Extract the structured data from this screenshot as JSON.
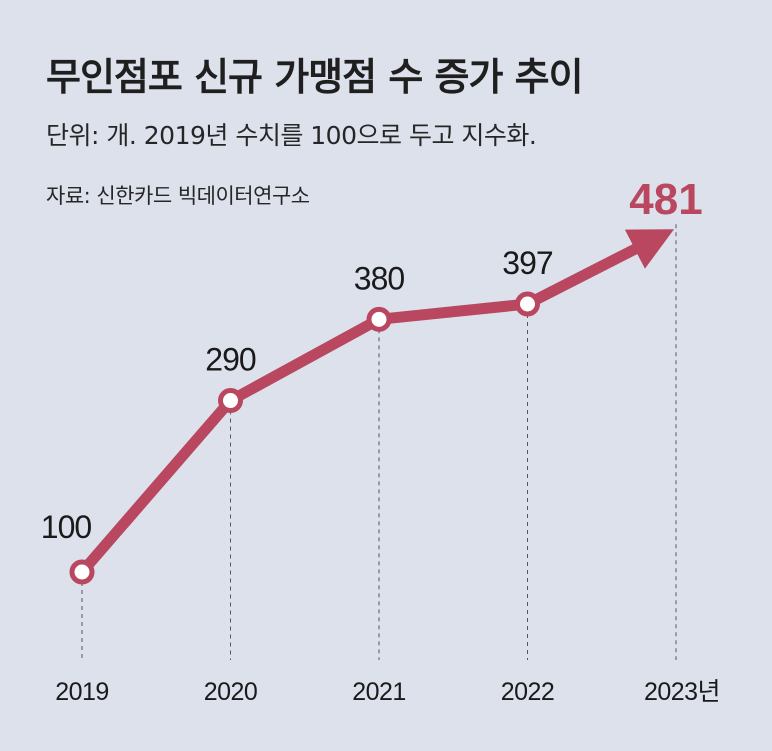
{
  "title": "무인점포 신규 가맹점 수 증가 추이",
  "subtitle": "단위: 개. 2019년 수치를 100으로 두고 지수화.",
  "source": "자료: 신한카드 빅데이터연구소",
  "colors": {
    "background": "#dde1ec",
    "line": "#b8475f",
    "highlight": "#b8475f",
    "text": "#1a1a1a"
  },
  "chart_data": {
    "type": "line",
    "categories": [
      "2019",
      "2020",
      "2021",
      "2022",
      "2023년"
    ],
    "values": [
      100,
      290,
      380,
      397,
      481
    ],
    "data_labels": [
      "100",
      "290",
      "380",
      "397",
      "481"
    ],
    "title": "무인점포 신규 가맹점 수 증가 추이",
    "xlabel": "",
    "ylabel": "",
    "grid": false,
    "final_point_style": "arrow"
  }
}
